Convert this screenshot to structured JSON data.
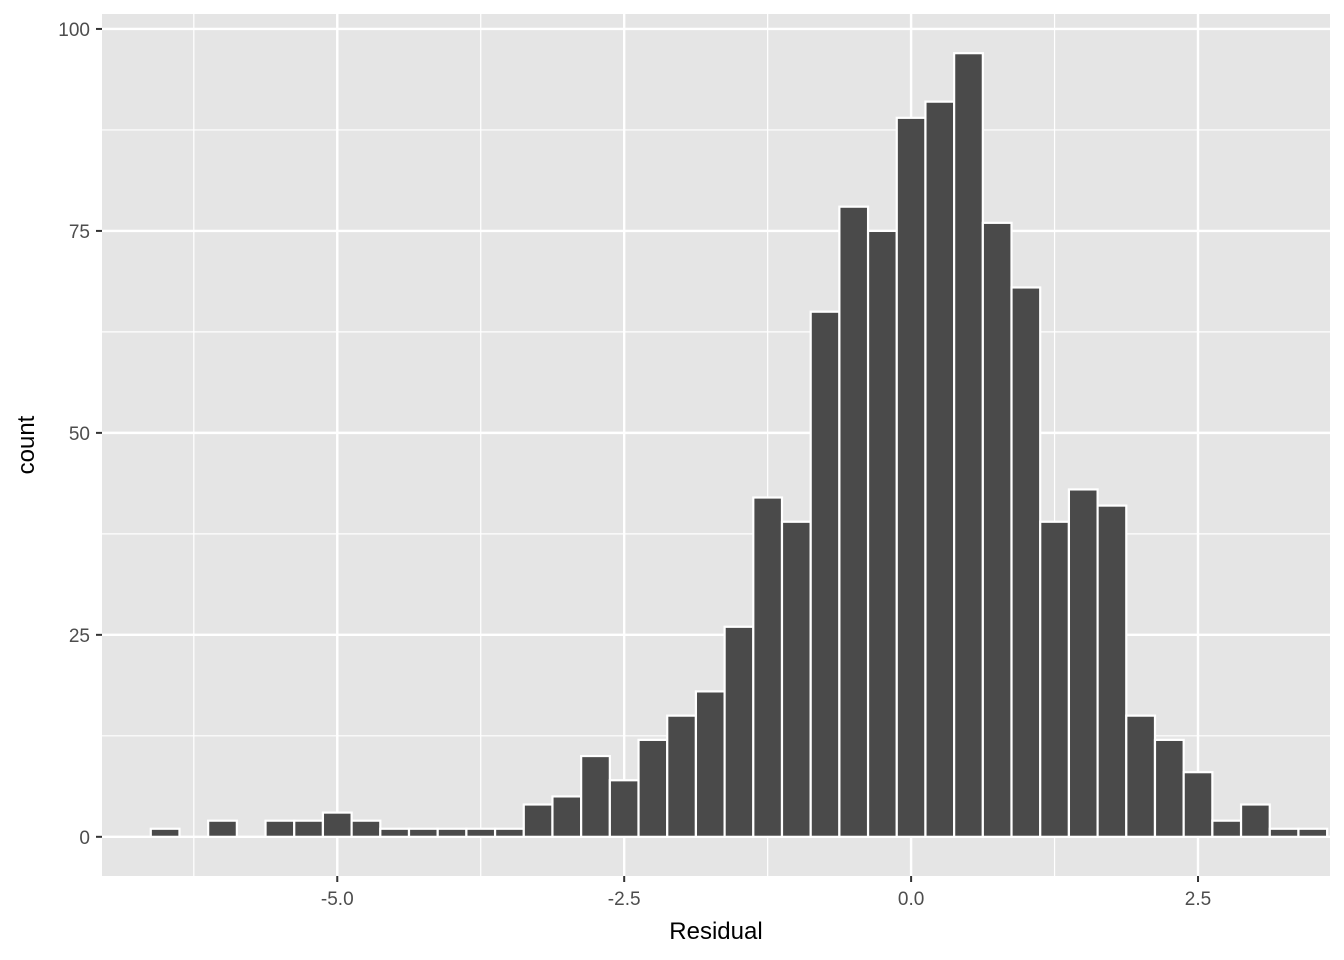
{
  "chart_data": {
    "type": "bar",
    "xlabel": "Residual",
    "ylabel": "count",
    "xlim": [
      -7.05,
      3.65
    ],
    "ylim": [
      -4.85,
      101.85
    ],
    "x_ticks": [
      -5.0,
      -2.5,
      0.0,
      2.5
    ],
    "x_tick_labels": [
      "-5.0",
      "-2.5",
      "0.0",
      "2.5"
    ],
    "y_ticks": [
      0,
      25,
      50,
      75,
      100
    ],
    "y_tick_labels": [
      "0",
      "25",
      "50",
      "75",
      "100"
    ],
    "grid": true,
    "bin_width": 0.25,
    "bins": [
      {
        "x": -6.5,
        "count": 1
      },
      {
        "x": -6.25,
        "count": 0
      },
      {
        "x": -6.0,
        "count": 2
      },
      {
        "x": -5.75,
        "count": 0
      },
      {
        "x": -5.5,
        "count": 2
      },
      {
        "x": -5.25,
        "count": 2
      },
      {
        "x": -5.0,
        "count": 3
      },
      {
        "x": -4.75,
        "count": 2
      },
      {
        "x": -4.5,
        "count": 1
      },
      {
        "x": -4.25,
        "count": 1
      },
      {
        "x": -4.0,
        "count": 1
      },
      {
        "x": -3.75,
        "count": 1
      },
      {
        "x": -3.5,
        "count": 1
      },
      {
        "x": -3.25,
        "count": 4
      },
      {
        "x": -3.0,
        "count": 5
      },
      {
        "x": -2.75,
        "count": 10
      },
      {
        "x": -2.5,
        "count": 7
      },
      {
        "x": -2.25,
        "count": 12
      },
      {
        "x": -2.0,
        "count": 15
      },
      {
        "x": -1.75,
        "count": 18
      },
      {
        "x": -1.5,
        "count": 26
      },
      {
        "x": -1.25,
        "count": 42
      },
      {
        "x": -1.0,
        "count": 39
      },
      {
        "x": -0.75,
        "count": 65
      },
      {
        "x": -0.5,
        "count": 78
      },
      {
        "x": -0.25,
        "count": 75
      },
      {
        "x": 0.0,
        "count": 89
      },
      {
        "x": 0.25,
        "count": 91
      },
      {
        "x": 0.5,
        "count": 97
      },
      {
        "x": 0.75,
        "count": 76
      },
      {
        "x": 1.0,
        "count": 68
      },
      {
        "x": 1.25,
        "count": 39
      },
      {
        "x": 1.5,
        "count": 43
      },
      {
        "x": 1.75,
        "count": 41
      },
      {
        "x": 2.0,
        "count": 15
      },
      {
        "x": 2.25,
        "count": 12
      },
      {
        "x": 2.5,
        "count": 8
      },
      {
        "x": 2.75,
        "count": 2
      },
      {
        "x": 3.0,
        "count": 4
      },
      {
        "x": 3.25,
        "count": 1
      },
      {
        "x": 3.5,
        "count": 1
      }
    ],
    "colors": {
      "panel_background": "#e5e5e5",
      "grid_major": "#ffffff",
      "bar_fill": "#4a4a4a",
      "bar_outline": "#ffffff",
      "tick_text": "#4d4d4d",
      "axis_title": "#000000"
    }
  }
}
